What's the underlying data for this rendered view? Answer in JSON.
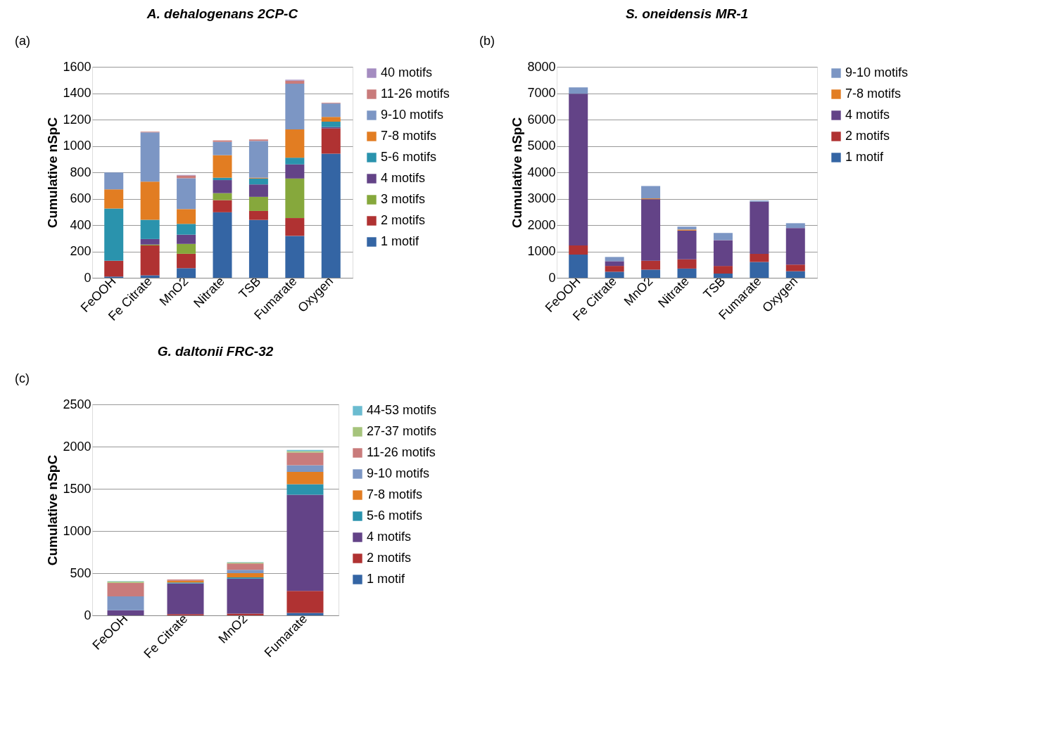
{
  "chart_data": [
    {
      "type": "bar",
      "stacked": true,
      "title": "A. dehalogenans 2CP-C",
      "ylabel": "Cumulative nSpC",
      "annotations": [
        "(a)"
      ],
      "legend": "right",
      "grid": "y",
      "categories": [
        "FeOOH",
        "Fe Citrate",
        "MnO2",
        "Nitrate",
        "TSB",
        "Fumarate",
        "Oxygen"
      ],
      "ylim": [
        0,
        1600
      ],
      "yticks": [
        0,
        200,
        400,
        600,
        800,
        1000,
        1200,
        1400,
        1600
      ],
      "series": [
        {
          "name": "1 motif",
          "color": "#3465a4",
          "values": [
            9,
            19,
            73,
            497,
            439,
            318,
            942
          ]
        },
        {
          "name": "2 motifs",
          "color": "#b03232",
          "values": [
            120,
            226,
            109,
            92,
            68,
            135,
            191
          ]
        },
        {
          "name": "3 motifs",
          "color": "#86a83c",
          "values": [
            0,
            7,
            75,
            53,
            107,
            300,
            0
          ]
        },
        {
          "name": "4 motifs",
          "color": "#634387",
          "values": [
            0,
            42,
            70,
            99,
            94,
            107,
            10
          ]
        },
        {
          "name": "5-6 motifs",
          "color": "#2a93ad",
          "values": [
            397,
            146,
            82,
            18,
            45,
            51,
            41
          ]
        },
        {
          "name": "7-8 motifs",
          "color": "#e27d22",
          "values": [
            145,
            289,
            112,
            171,
            6,
            215,
            36
          ]
        },
        {
          "name": "9-10 motifs",
          "color": "#7c96c4",
          "values": [
            128,
            374,
            234,
            101,
            279,
            346,
            102
          ]
        },
        {
          "name": "11-26 motifs",
          "color": "#c97b7b",
          "values": [
            0,
            5,
            21,
            11,
            11,
            23,
            5
          ]
        },
        {
          "name": "40 motifs",
          "color": "#a48cc0",
          "values": [
            0,
            0,
            4,
            0,
            0,
            7,
            0
          ]
        }
      ]
    },
    {
      "type": "bar",
      "stacked": true,
      "title": "S. oneidensis MR-1",
      "ylabel": "Cumulative nSpC",
      "annotations": [
        "(b)"
      ],
      "legend": "right",
      "grid": "y",
      "categories": [
        "FeOOH",
        "Fe Citrate",
        "MnO2",
        "Nitrate",
        "TSB",
        "Fumarate",
        "Oxygen"
      ],
      "ylim": [
        0,
        8000
      ],
      "yticks": [
        0,
        1000,
        2000,
        3000,
        4000,
        5000,
        6000,
        7000,
        8000
      ],
      "series": [
        {
          "name": "1 motif",
          "color": "#3465a4",
          "values": [
            880,
            230,
            310,
            350,
            160,
            600,
            250
          ]
        },
        {
          "name": "2 motifs",
          "color": "#b03232",
          "values": [
            350,
            220,
            340,
            350,
            290,
            310,
            250
          ]
        },
        {
          "name": "4 motifs",
          "color": "#634387",
          "values": [
            5750,
            180,
            2330,
            1090,
            980,
            1980,
            1390
          ]
        },
        {
          "name": "7-8 motifs",
          "color": "#e27d22",
          "values": [
            0,
            0,
            30,
            40,
            0,
            0,
            0
          ]
        },
        {
          "name": "9-10 motifs",
          "color": "#7c96c4",
          "values": [
            240,
            160,
            470,
            110,
            270,
            40,
            180
          ]
        }
      ]
    },
    {
      "type": "bar",
      "stacked": true,
      "title": "G. daltonii FRC-32",
      "ylabel": "Cumulative nSpC",
      "annotations": [
        "(c)"
      ],
      "legend": "right",
      "grid": "y",
      "categories": [
        "FeOOH",
        "Fe Citrate",
        "MnO2",
        "Fumarate"
      ],
      "ylim": [
        0,
        2500
      ],
      "yticks": [
        0,
        500,
        1000,
        1500,
        2000,
        2500
      ],
      "series": [
        {
          "name": "1 motif",
          "color": "#3465a4",
          "values": [
            0,
            0,
            0,
            30
          ]
        },
        {
          "name": "2 motifs",
          "color": "#b03232",
          "values": [
            0,
            15,
            20,
            260
          ]
        },
        {
          "name": "4 motifs",
          "color": "#634387",
          "values": [
            60,
            365,
            415,
            1140
          ]
        },
        {
          "name": "5-6 motifs",
          "color": "#2a93ad",
          "values": [
            0,
            10,
            15,
            125
          ]
        },
        {
          "name": "7-8 motifs",
          "color": "#e27d22",
          "values": [
            0,
            20,
            50,
            145
          ]
        },
        {
          "name": "9-10 motifs",
          "color": "#7c96c4",
          "values": [
            165,
            0,
            40,
            80
          ]
        },
        {
          "name": "11-26 motifs",
          "color": "#c97b7b",
          "values": [
            160,
            15,
            75,
            150
          ]
        },
        {
          "name": "27-37 motifs",
          "color": "#a6c47c",
          "values": [
            15,
            0,
            10,
            15
          ]
        },
        {
          "name": "44-53 motifs",
          "color": "#6bbcd0",
          "values": [
            5,
            0,
            5,
            15
          ]
        }
      ]
    }
  ]
}
